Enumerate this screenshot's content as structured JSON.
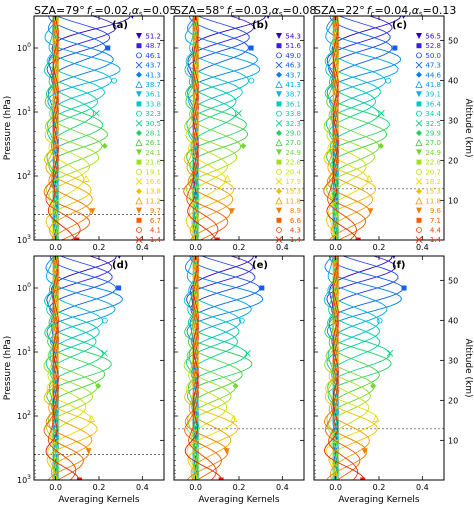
{
  "titles": [
    {
      "sza": "SZA=79°",
      "fc": "f",
      "fc_sub": "c",
      "fc_val": "=0.02,",
      "alpha": "α",
      "alpha_sub": "s",
      "alpha_val": "=0.05"
    },
    {
      "sza": "SZA=58°",
      "fc": "f",
      "fc_sub": "c",
      "fc_val": "=0.03,",
      "alpha": "α",
      "alpha_sub": "s",
      "alpha_val": "=0.08"
    },
    {
      "sza": "SZA=22°",
      "fc": "f",
      "fc_sub": "c",
      "fc_val": "=0.04,",
      "alpha": "α",
      "alpha_sub": "s",
      "alpha_val": "=0.13"
    }
  ],
  "chart_data": {
    "type": "line",
    "panel_labels": [
      "(a)",
      "(b)",
      "(c)",
      "(d)",
      "(e)",
      "(f)"
    ],
    "xlabel": "Averaging Kernels",
    "ylabel_left": "Pressure (hPa)",
    "ylabel_right": "Altitude (km)",
    "xlim": [
      -0.1,
      0.5
    ],
    "xticks": [
      "0.0",
      "0.2",
      "0.4"
    ],
    "ylim_log10_hPa": [
      -0.5,
      3.0
    ],
    "yticks": [
      {
        "base": "10",
        "exp": "0",
        "log": 0
      },
      {
        "base": "10",
        "exp": "1",
        "log": 1
      },
      {
        "base": "10",
        "exp": "2",
        "log": 2
      },
      {
        "base": "10",
        "exp": "3",
        "log": 3
      }
    ],
    "right_ticks_km": [
      "10",
      "20",
      "30",
      "40",
      "50"
    ],
    "tropopause_log10_hPa": [
      2.6,
      2.2,
      2.2,
      2.6,
      2.2,
      2.2
    ],
    "layer_altitudes": [
      [
        "51.2",
        "48.7",
        "46.1",
        "43.7",
        "41.3",
        "38.7",
        "36.1",
        "33.8",
        "32.3",
        "30.5",
        "28.1",
        "26.1",
        "24.1",
        "21.6",
        "19.1",
        "16.6",
        "13.8",
        "11.2",
        "9.7",
        "6.7",
        "4.1",
        "1.4"
      ],
      [
        "54.3",
        "51.6",
        "49.0",
        "46.3",
        "43.7",
        "41.3",
        "38.7",
        "36.1",
        "33.8",
        "32.3",
        "29.0",
        "27.0",
        "24.9",
        "22.8",
        "20.4",
        "17.9",
        "15.3",
        "11.8",
        "8.9",
        "6.6",
        "4.3",
        "1.4"
      ],
      [
        "56.5",
        "52.8",
        "50.0",
        "47.3",
        "44.6",
        "41.8",
        "39.1",
        "36.4",
        "34.4",
        "32.5",
        "29.9",
        "27.0",
        "24.9",
        "22.8",
        "20.7",
        "18.2",
        "15.3",
        "11.8",
        "9.6",
        "7.1",
        "4.4",
        "1.4"
      ]
    ],
    "series_colors": [
      "#2a00c8",
      "#3a1ee0",
      "#2040f0",
      "#1060f0",
      "#0080f0",
      "#00a0e8",
      "#00b8e0",
      "#00c8c0",
      "#00d0a0",
      "#00d080",
      "#20d060",
      "#40d040",
      "#70d830",
      "#a0e020",
      "#c8e010",
      "#e8e000",
      "#f0c000",
      "#f0a000",
      "#f08000",
      "#f06000",
      "#f04000",
      "#e82000"
    ],
    "curves": [
      {
        "peak_log": -0.5,
        "amp": 0.38
      },
      {
        "peak_log": -0.33,
        "amp": 0.36
      },
      {
        "peak_log": -0.16,
        "amp": 0.34
      },
      {
        "peak_log": 0.0,
        "amp": 0.32
      },
      {
        "peak_log": 0.17,
        "amp": 0.3
      },
      {
        "peak_log": 0.34,
        "amp": 0.29
      },
      {
        "peak_log": 0.51,
        "amp": 0.28
      },
      {
        "peak_log": 0.68,
        "amp": 0.27
      },
      {
        "peak_log": 0.85,
        "amp": 0.26
      },
      {
        "peak_log": 1.02,
        "amp": 0.26
      },
      {
        "peak_log": 1.19,
        "amp": 0.25
      },
      {
        "peak_log": 1.36,
        "amp": 0.24
      },
      {
        "peak_log": 1.53,
        "amp": 0.23
      },
      {
        "peak_log": 1.7,
        "amp": 0.22
      },
      {
        "peak_log": 1.87,
        "amp": 0.21
      },
      {
        "peak_log": 2.04,
        "amp": 0.2
      },
      {
        "peak_log": 2.21,
        "amp": 0.19
      },
      {
        "peak_log": 2.38,
        "amp": 0.18
      },
      {
        "peak_log": 2.55,
        "amp": 0.17
      },
      {
        "peak_log": 2.72,
        "amp": 0.16
      },
      {
        "peak_log": 2.86,
        "amp": 0.15
      },
      {
        "peak_log": 3.0,
        "amp": 0.14
      }
    ]
  }
}
